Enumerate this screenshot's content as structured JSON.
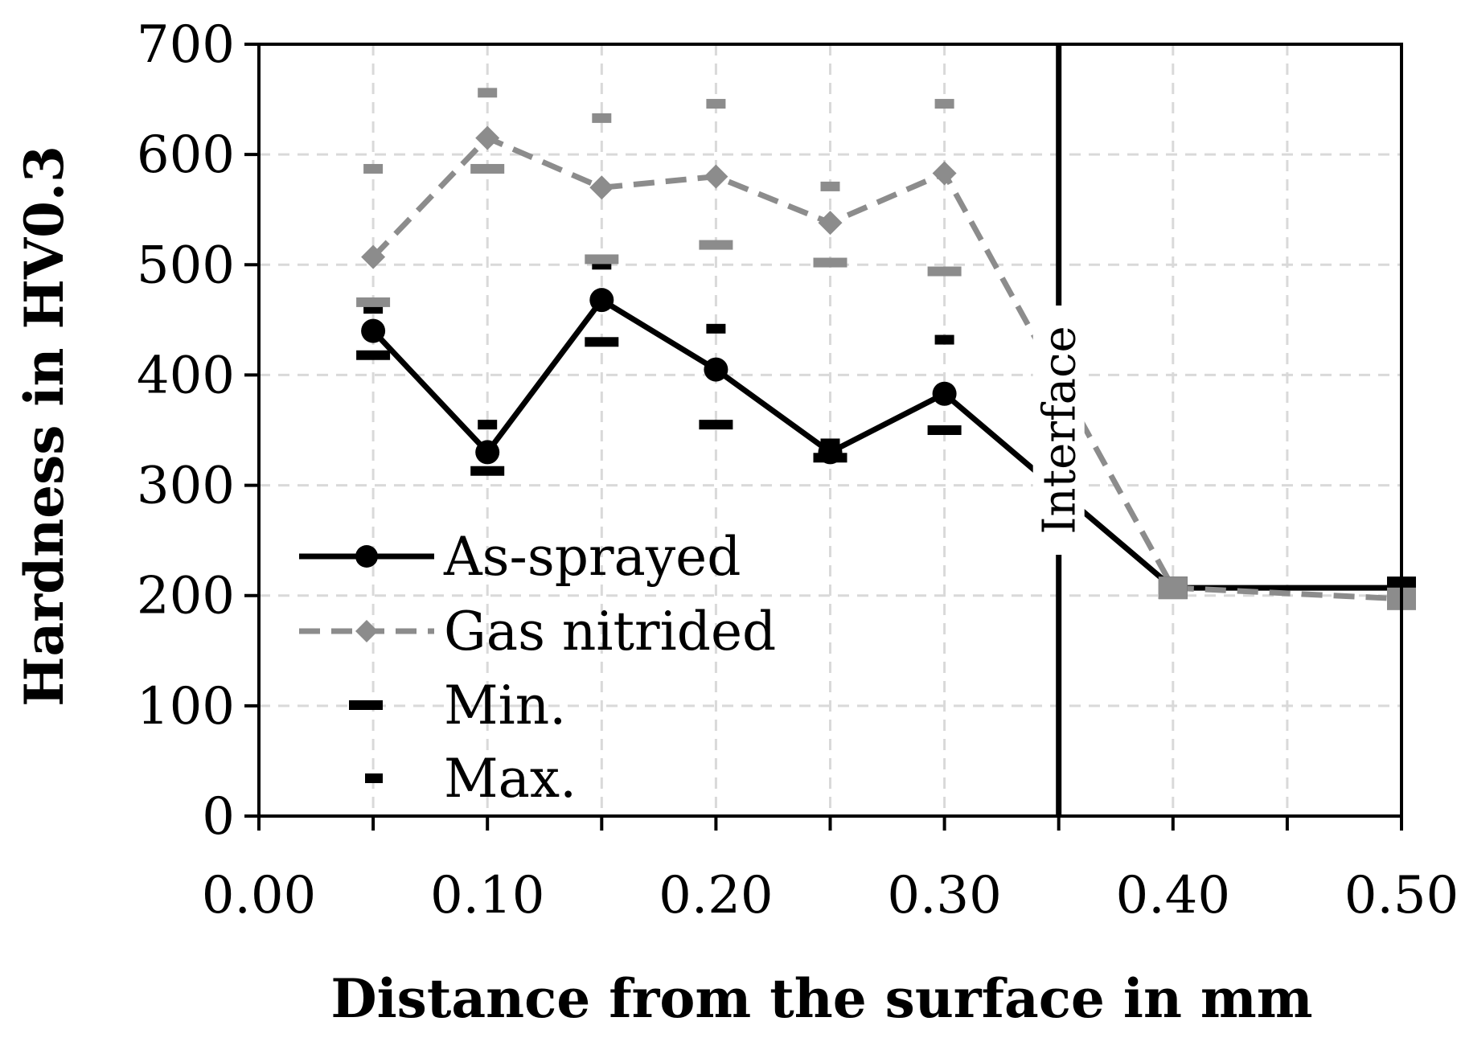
{
  "chart_data": {
    "type": "line",
    "title": "",
    "xlabel": "Distance from the surface in mm",
    "ylabel": "Hardness in HV0.3",
    "xlim": [
      0,
      0.5
    ],
    "ylim": [
      0,
      700
    ],
    "x_ticks": [
      "0.00",
      "0.10",
      "0.20",
      "0.30",
      "0.40",
      "0.50"
    ],
    "x_tick_values": [
      0,
      0.1,
      0.2,
      0.3,
      0.4,
      0.5
    ],
    "y_ticks": [
      "0",
      "100",
      "200",
      "300",
      "400",
      "500",
      "600",
      "700"
    ],
    "y_tick_values": [
      0,
      100,
      200,
      300,
      400,
      500,
      600,
      700
    ],
    "grid": true,
    "legend_position": "bottom-left",
    "annotation": {
      "text": "Interface",
      "x": 0.35
    },
    "series": [
      {
        "name": "As-sprayed",
        "style": "solid",
        "marker": "circle",
        "color": "#000000",
        "x": [
          0.05,
          0.1,
          0.15,
          0.2,
          0.25,
          0.3,
          0.4,
          0.5
        ],
        "values": [
          440,
          330,
          468,
          405,
          330,
          383,
          207,
          207
        ],
        "min": [
          418,
          313,
          430,
          355,
          325,
          350,
          null,
          null
        ],
        "max": [
          460,
          355,
          500,
          442,
          338,
          432,
          null,
          null
        ]
      },
      {
        "name": "Gas nitrided",
        "style": "dashed",
        "marker": "diamond",
        "color": "#8c8c8c",
        "x": [
          0.05,
          0.1,
          0.15,
          0.2,
          0.25,
          0.3,
          0.4,
          0.5
        ],
        "values": [
          507,
          615,
          570,
          580,
          538,
          583,
          207,
          197
        ],
        "min": [
          466,
          587,
          505,
          518,
          502,
          494,
          null,
          null
        ],
        "max": [
          587,
          656,
          633,
          646,
          571,
          646,
          null,
          null
        ]
      }
    ],
    "legend": [
      {
        "label": "As-sprayed",
        "kind": "line-circle"
      },
      {
        "label": "Gas nitrided",
        "kind": "dashed-diamond"
      },
      {
        "label": "Min.",
        "kind": "min-dash"
      },
      {
        "label": "Max.",
        "kind": "max-dash"
      }
    ]
  }
}
